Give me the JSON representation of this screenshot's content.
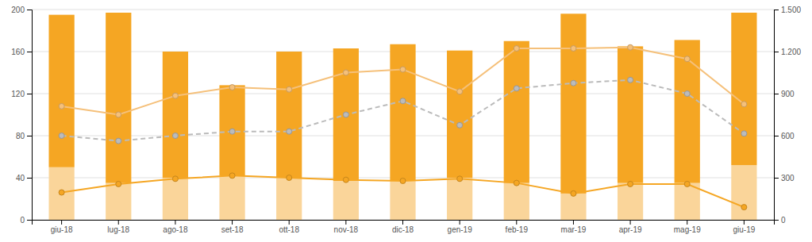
{
  "chart_data": {
    "type": "bar",
    "categories": [
      "giu-18",
      "lug-18",
      "ago-18",
      "set-18",
      "ott-18",
      "nov-18",
      "dic-18",
      "gen-19",
      "feb-19",
      "mar-19",
      "apr-19",
      "mag-19",
      "giu-19"
    ],
    "stacked": true,
    "series": [
      {
        "type": "bar",
        "color": "#FAD59A",
        "values": [
          50,
          35,
          40,
          42,
          40,
          37,
          37,
          40,
          35,
          25,
          35,
          35,
          52
        ]
      },
      {
        "type": "bar",
        "color": "#F5A623",
        "values": [
          145,
          162,
          120,
          86,
          120,
          126,
          130,
          121,
          135,
          171,
          130,
          136,
          145
        ]
      },
      {
        "type": "line",
        "color": "#F5C07A",
        "marker": "circle",
        "line_style": "solid",
        "values": [
          108,
          100,
          118,
          126,
          124,
          140,
          143,
          122,
          163,
          163,
          164,
          153,
          110
        ]
      },
      {
        "type": "line",
        "color": "#F5A623",
        "marker": "circle",
        "line_style": "solid",
        "values": [
          26,
          34,
          39,
          42,
          40,
          38,
          37,
          39,
          35,
          25,
          34,
          34,
          12
        ]
      },
      {
        "type": "line",
        "color": "#BBBBBB",
        "marker": "circle",
        "line_style": "dashed",
        "values": [
          80,
          75,
          80,
          84,
          84,
          100,
          113,
          90,
          125,
          130,
          133,
          120,
          82
        ]
      }
    ],
    "ylim": [
      0,
      200
    ],
    "yticks": [
      0,
      40,
      80,
      120,
      160,
      200
    ],
    "y2lim": [
      0,
      1500
    ],
    "y2ticks": [
      0,
      300,
      600,
      900,
      {
        "value": 1200,
        "label": "1.200"
      },
      {
        "value": 1500,
        "label": "1.500"
      }
    ],
    "grid": true
  }
}
